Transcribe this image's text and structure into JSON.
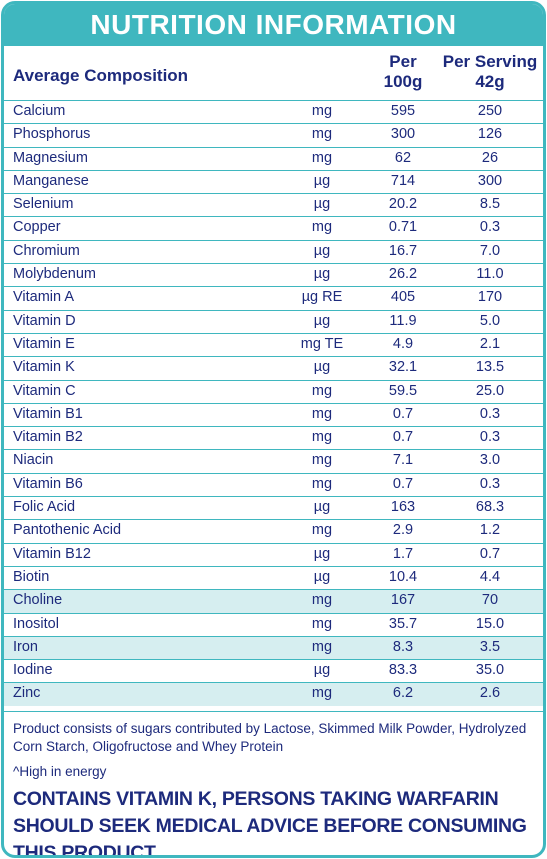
{
  "header": {
    "title": "NUTRITION INFORMATION"
  },
  "columns": {
    "composition": "Average Composition",
    "per100": "Per\n100g",
    "perServing": "Per Serving\n42g"
  },
  "rows": [
    {
      "name": "Calcium",
      "unit": "mg",
      "per100": "595",
      "perServing": "250"
    },
    {
      "name": "Phosphorus",
      "unit": "mg",
      "per100": "300",
      "perServing": "126"
    },
    {
      "name": "Magnesium",
      "unit": "mg",
      "per100": "62",
      "perServing": "26"
    },
    {
      "name": "Manganese",
      "unit": "µg",
      "per100": "714",
      "perServing": "300"
    },
    {
      "name": "Selenium",
      "unit": "µg",
      "per100": "20.2",
      "perServing": "8.5"
    },
    {
      "name": "Copper",
      "unit": "mg",
      "per100": "0.71",
      "perServing": "0.3"
    },
    {
      "name": "Chromium",
      "unit": "µg",
      "per100": "16.7",
      "perServing": "7.0"
    },
    {
      "name": "Molybdenum",
      "unit": "µg",
      "per100": "26.2",
      "perServing": "11.0"
    },
    {
      "name": "Vitamin A",
      "unit": "µg RE",
      "per100": "405",
      "perServing": "170"
    },
    {
      "name": "Vitamin D",
      "unit": "µg",
      "per100": "11.9",
      "perServing": "5.0"
    },
    {
      "name": "Vitamin E",
      "unit": "mg TE",
      "per100": "4.9",
      "perServing": "2.1"
    },
    {
      "name": "Vitamin K",
      "unit": "µg",
      "per100": "32.1",
      "perServing": "13.5"
    },
    {
      "name": "Vitamin C",
      "unit": "mg",
      "per100": "59.5",
      "perServing": "25.0"
    },
    {
      "name": "Vitamin B1",
      "unit": "mg",
      "per100": "0.7",
      "perServing": "0.3"
    },
    {
      "name": "Vitamin B2",
      "unit": "mg",
      "per100": "0.7",
      "perServing": "0.3"
    },
    {
      "name": "Niacin",
      "unit": "mg",
      "per100": "7.1",
      "perServing": "3.0"
    },
    {
      "name": "Vitamin B6",
      "unit": "mg",
      "per100": "0.7",
      "perServing": "0.3"
    },
    {
      "name": "Folic Acid",
      "unit": "µg",
      "per100": "163",
      "perServing": "68.3"
    },
    {
      "name": "Pantothenic Acid",
      "unit": "mg",
      "per100": "2.9",
      "perServing": "1.2"
    },
    {
      "name": "Vitamin B12",
      "unit": "µg",
      "per100": "1.7",
      "perServing": "0.7"
    },
    {
      "name": "Biotin",
      "unit": "µg",
      "per100": "10.4",
      "perServing": "4.4"
    },
    {
      "name": "Choline",
      "unit": "mg",
      "per100": "167",
      "perServing": "70",
      "shaded": true
    },
    {
      "name": "Inositol",
      "unit": "mg",
      "per100": "35.7",
      "perServing": "15.0"
    },
    {
      "name": "Iron",
      "unit": "mg",
      "per100": "8.3",
      "perServing": "3.5",
      "shaded": true
    },
    {
      "name": "Iodine",
      "unit": "µg",
      "per100": "83.3",
      "perServing": "35.0"
    },
    {
      "name": "Zinc",
      "unit": "mg",
      "per100": "6.2",
      "perServing": "2.6",
      "shaded": true
    }
  ],
  "footer": {
    "note": "Product consists of sugars contributed by Lactose, Skimmed Milk Powder, Hydrolyzed Corn Starch, Oligofructose and Whey Protein",
    "energy": "^High in energy",
    "warning": "CONTAINS VITAMIN K, PERSONS TAKING WARFARIN SHOULD SEEK MEDICAL ADVICE BEFORE CONSUMING THIS PRODUCT"
  },
  "colors": {
    "accent": "#3fb7bf",
    "text": "#1d2a7c",
    "shade": "#d6eef0"
  }
}
